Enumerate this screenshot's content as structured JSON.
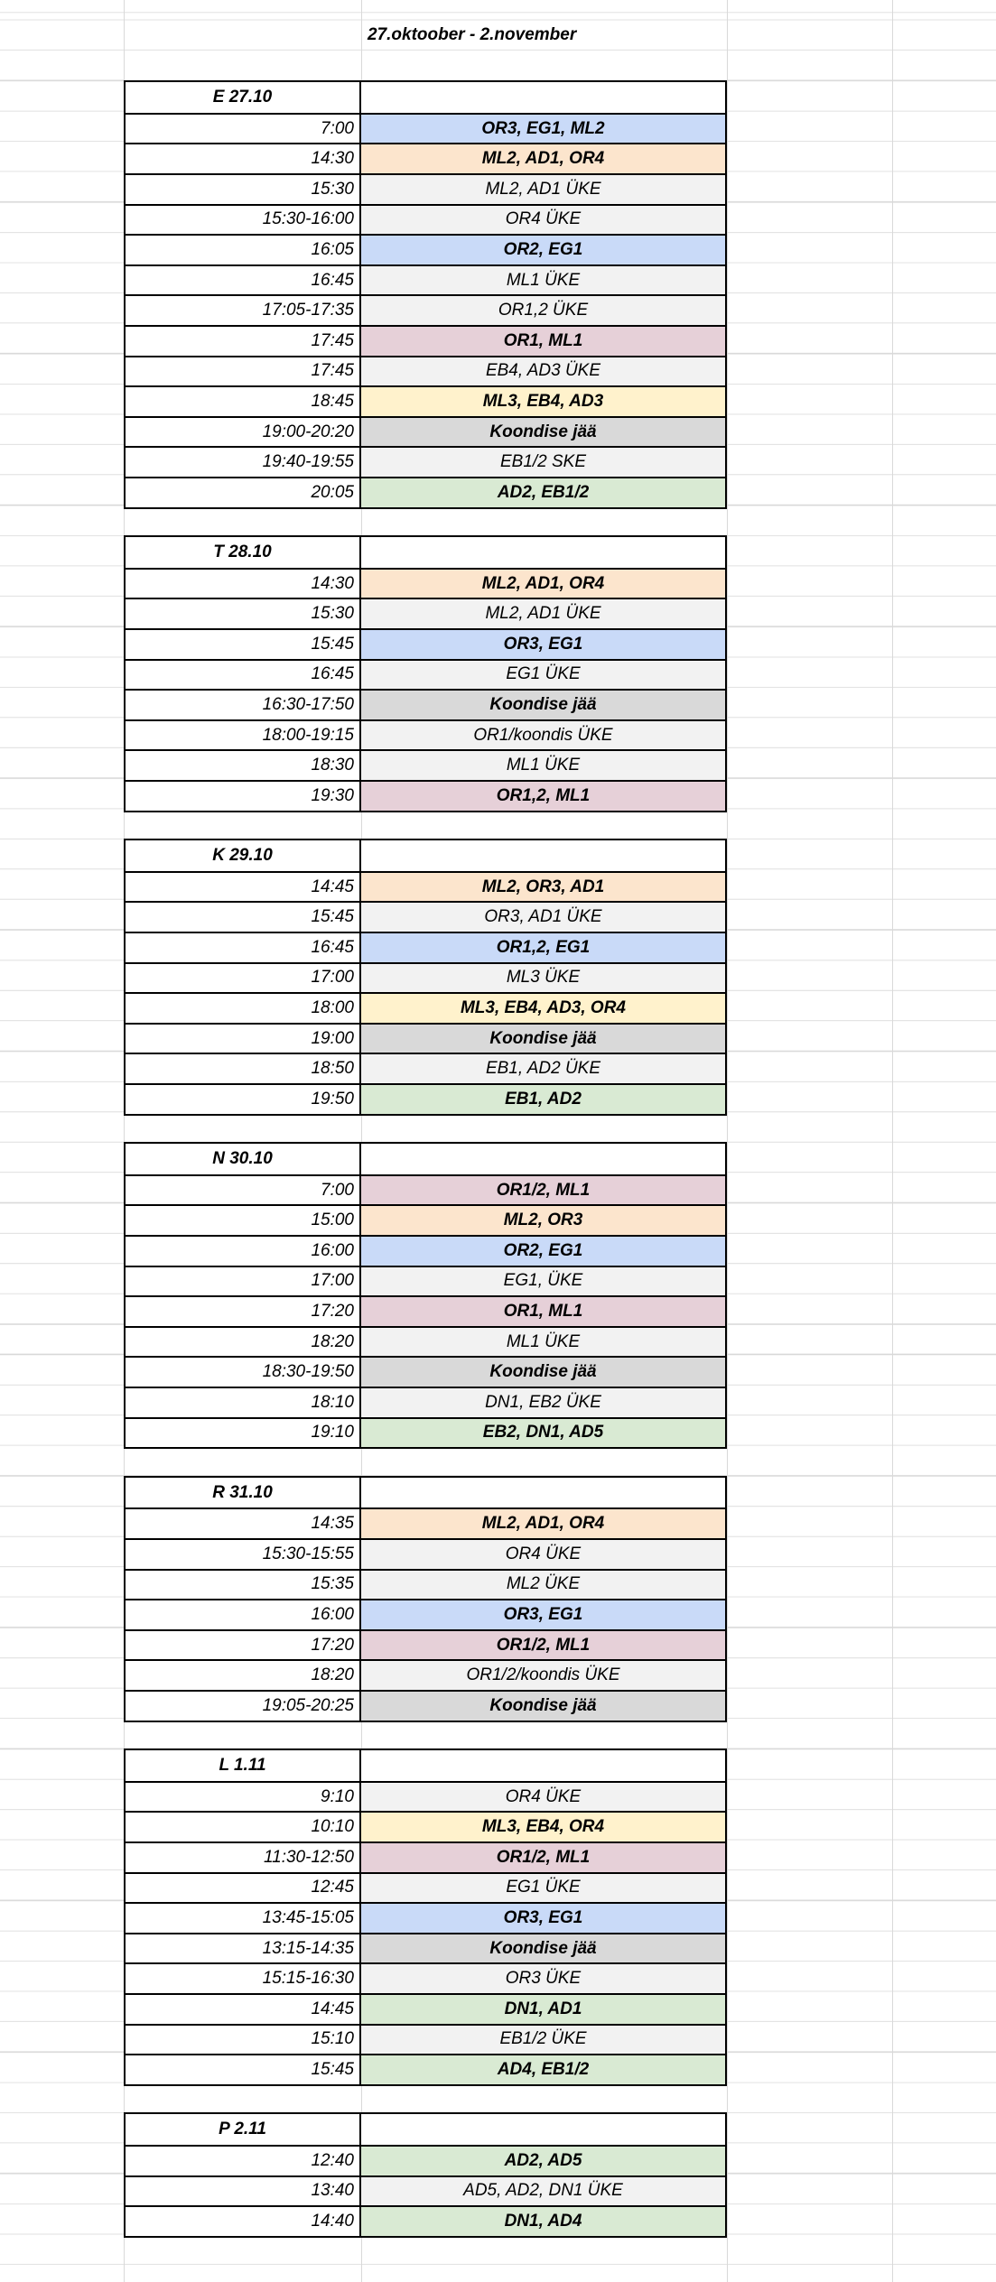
{
  "sheet": {
    "title": "27.oktoober - 2.november",
    "palette": {
      "blue": "#c9daf8",
      "orange": "#fce5cd",
      "gray": "#f2f2f2",
      "koondis": "#d9d9d9",
      "pink": "#e6d0d8",
      "yellow": "#fff2cc",
      "green": "#d9ead3",
      "white": "#ffffff"
    },
    "days": [
      {
        "label": "E 27.10",
        "rows": [
          {
            "time": "7:00",
            "activity": "OR3, EG1, ML2",
            "color": "blue",
            "bold": true
          },
          {
            "time": "14:30",
            "activity": "ML2, AD1, OR4",
            "color": "orange",
            "bold": true
          },
          {
            "time": "15:30",
            "activity": "ML2, AD1 ÜKE",
            "color": "gray",
            "bold": false
          },
          {
            "time": "15:30-16:00",
            "activity": "OR4 ÜKE",
            "color": "gray",
            "bold": false
          },
          {
            "time": "16:05",
            "activity": "OR2, EG1",
            "color": "blue",
            "bold": true
          },
          {
            "time": "16:45",
            "activity": "ML1 ÜKE",
            "color": "gray",
            "bold": false
          },
          {
            "time": "17:05-17:35",
            "activity": "OR1,2 ÜKE",
            "color": "gray",
            "bold": false
          },
          {
            "time": "17:45",
            "activity": "OR1, ML1",
            "color": "pink",
            "bold": true
          },
          {
            "time": "17:45",
            "activity": "EB4, AD3 ÜKE",
            "color": "gray",
            "bold": false
          },
          {
            "time": "18:45",
            "activity": "ML3, EB4, AD3",
            "color": "yellow",
            "bold": true
          },
          {
            "time": "19:00-20:20",
            "activity": "Koondise jää",
            "color": "koondis",
            "bold": true
          },
          {
            "time": "19:40-19:55",
            "activity": "EB1/2 SKE",
            "color": "gray",
            "bold": false
          },
          {
            "time": "20:05",
            "activity": "AD2, EB1/2",
            "color": "green",
            "bold": true
          }
        ]
      },
      {
        "label": "T 28.10",
        "rows": [
          {
            "time": "14:30",
            "activity": "ML2, AD1, OR4",
            "color": "orange",
            "bold": true
          },
          {
            "time": "15:30",
            "activity": "ML2, AD1 ÜKE",
            "color": "gray",
            "bold": false
          },
          {
            "time": "15:45",
            "activity": "OR3, EG1",
            "color": "blue",
            "bold": true
          },
          {
            "time": "16:45",
            "activity": "EG1 ÜKE",
            "color": "gray",
            "bold": false
          },
          {
            "time": "16:30-17:50",
            "activity": "Koondise jää",
            "color": "koondis",
            "bold": true
          },
          {
            "time": "18:00-19:15",
            "activity": "OR1/koondis ÜKE",
            "color": "gray",
            "bold": false
          },
          {
            "time": "18:30",
            "activity": "ML1 ÜKE",
            "color": "gray",
            "bold": false
          },
          {
            "time": "19:30",
            "activity": "OR1,2, ML1",
            "color": "pink",
            "bold": true
          }
        ]
      },
      {
        "label": "K 29.10",
        "rows": [
          {
            "time": "14:45",
            "activity": "ML2, OR3, AD1",
            "color": "orange",
            "bold": true
          },
          {
            "time": "15:45",
            "activity": "OR3, AD1 ÜKE",
            "color": "gray",
            "bold": false
          },
          {
            "time": "16:45",
            "activity": "OR1,2, EG1",
            "color": "blue",
            "bold": true
          },
          {
            "time": "17:00",
            "activity": "ML3 ÜKE",
            "color": "gray",
            "bold": false
          },
          {
            "time": "18:00",
            "activity": "ML3, EB4, AD3, OR4",
            "color": "yellow",
            "bold": true
          },
          {
            "time": "19:00",
            "activity": "Koondise jää",
            "color": "koondis",
            "bold": true
          },
          {
            "time": "18:50",
            "activity": "EB1, AD2 ÜKE",
            "color": "gray",
            "bold": false
          },
          {
            "time": "19:50",
            "activity": "EB1, AD2",
            "color": "green",
            "bold": true
          }
        ]
      },
      {
        "label": "N 30.10",
        "rows": [
          {
            "time": "7:00",
            "activity": "OR1/2, ML1",
            "color": "pink",
            "bold": true
          },
          {
            "time": "15:00",
            "activity": "ML2, OR3",
            "color": "orange",
            "bold": true
          },
          {
            "time": "16:00",
            "activity": "OR2, EG1",
            "color": "blue",
            "bold": true
          },
          {
            "time": "17:00",
            "activity": "EG1, ÜKE",
            "color": "gray",
            "bold": false
          },
          {
            "time": "17:20",
            "activity": "OR1, ML1",
            "color": "pink",
            "bold": true
          },
          {
            "time": "18:20",
            "activity": "ML1 ÜKE",
            "color": "gray",
            "bold": false
          },
          {
            "time": "18:30-19:50",
            "activity": "Koondise jää",
            "color": "koondis",
            "bold": true
          },
          {
            "time": "18:10",
            "activity": "DN1, EB2 ÜKE",
            "color": "gray",
            "bold": false
          },
          {
            "time": "19:10",
            "activity": "EB2, DN1, AD5",
            "color": "green",
            "bold": true
          }
        ]
      },
      {
        "label": "R 31.10",
        "rows": [
          {
            "time": "14:35",
            "activity": "ML2, AD1, OR4",
            "color": "orange",
            "bold": true
          },
          {
            "time": "15:30-15:55",
            "activity": "OR4 ÜKE",
            "color": "gray",
            "bold": false
          },
          {
            "time": "15:35",
            "activity": "ML2 ÜKE",
            "color": "gray",
            "bold": false
          },
          {
            "time": "16:00",
            "activity": "OR3, EG1",
            "color": "blue",
            "bold": true
          },
          {
            "time": "17:20",
            "activity": "OR1/2, ML1",
            "color": "pink",
            "bold": true
          },
          {
            "time": "18:20",
            "activity": "OR1/2/koondis ÜKE",
            "color": "gray",
            "bold": false
          },
          {
            "time": "19:05-20:25",
            "activity": "Koondise jää",
            "color": "koondis",
            "bold": true
          }
        ]
      },
      {
        "label": "L 1.11",
        "rows": [
          {
            "time": "9:10",
            "activity": "OR4 ÜKE",
            "color": "gray",
            "bold": false
          },
          {
            "time": "10:10",
            "activity": "ML3, EB4, OR4",
            "color": "yellow",
            "bold": true
          },
          {
            "time": "11:30-12:50",
            "activity": "OR1/2, ML1",
            "color": "pink",
            "bold": true
          },
          {
            "time": "12:45",
            "activity": "EG1 ÜKE",
            "color": "gray",
            "bold": false
          },
          {
            "time": "13:45-15:05",
            "activity": "OR3, EG1",
            "color": "blue",
            "bold": true
          },
          {
            "time": "13:15-14:35",
            "activity": "Koondise jää",
            "color": "koondis",
            "bold": true
          },
          {
            "time": "15:15-16:30",
            "activity": "OR3 ÜKE",
            "color": "gray",
            "bold": false
          },
          {
            "time": "14:45",
            "activity": "DN1, AD1",
            "color": "green",
            "bold": true
          },
          {
            "time": "15:10",
            "activity": "EB1/2 ÜKE",
            "color": "gray",
            "bold": false
          },
          {
            "time": "15:45",
            "activity": "AD4, EB1/2",
            "color": "green",
            "bold": true
          }
        ]
      },
      {
        "label": "P 2.11",
        "rows": [
          {
            "time": "12:40",
            "activity": "AD2, AD5",
            "color": "green",
            "bold": true
          },
          {
            "time": "13:40",
            "activity": "AD5, AD2, DN1 ÜKE",
            "color": "gray",
            "bold": false
          },
          {
            "time": "14:40",
            "activity": "DN1, AD4",
            "color": "green",
            "bold": true
          }
        ]
      }
    ]
  }
}
